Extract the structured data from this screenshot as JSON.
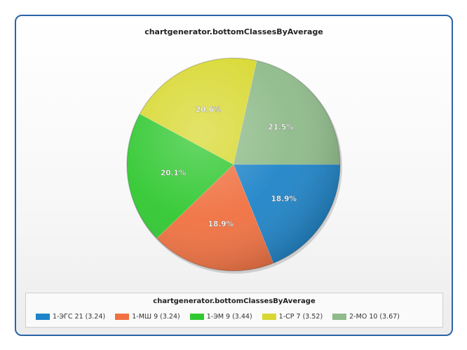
{
  "chart_data": {
    "type": "pie",
    "title": "chartgenerator.bottomClassesByAverage",
    "legend_title": "chartgenerator.bottomClassesByAverage",
    "legend_position": "bottom",
    "slices": [
      {
        "label": "1-ЭГС 21 (3.24)",
        "percent": 18.9,
        "display": "18.9%",
        "color": "#1e84c8"
      },
      {
        "label": "1-МШ 9 (3.24)",
        "percent": 18.9,
        "display": "18.9%",
        "color": "#f07040"
      },
      {
        "label": "1-ЭМ 9 (3.44)",
        "percent": 20.1,
        "display": "20.1%",
        "color": "#30c830"
      },
      {
        "label": "1-СР 7 (3.52)",
        "percent": 20.6,
        "display": "20.6%",
        "color": "#d8d830"
      },
      {
        "label": "2-МО 10 (3.67)",
        "percent": 21.5,
        "display": "21.5%",
        "color": "#8fbb8a"
      }
    ]
  }
}
